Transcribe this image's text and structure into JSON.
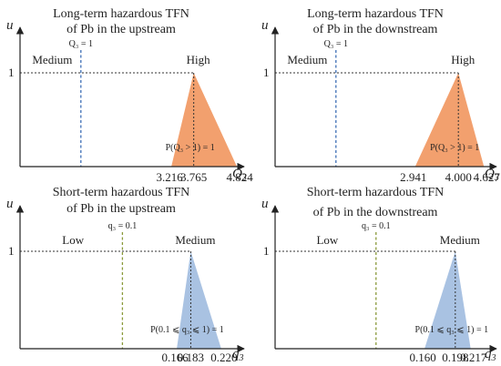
{
  "chart_data": [
    {
      "type": "area",
      "title_lines": [
        "Long-term hazardous TFN",
        "of Pb in the upstream"
      ],
      "y_axis_label": "u",
      "x_axis_label": "Q",
      "x_axis_subscript": "3",
      "y_tick_label": "1",
      "threshold_label": "Q₃ = 1",
      "threshold_value": 1,
      "left_region_label": "Medium",
      "right_region_label": "High",
      "probability_label": "P(Q₃ > 1) = 1",
      "tfn": [
        3.216,
        3.765,
        4.824
      ],
      "tfn_labels": [
        "3.216",
        "3.765",
        "4.824"
      ],
      "x_range": [
        0,
        5
      ],
      "y_range": [
        0,
        1
      ],
      "fill_color": "#f2a06e",
      "threshold_color": "#3d6fb6"
    },
    {
      "type": "area",
      "title_lines": [
        "Long-term hazardous TFN",
        "of Pb in the downstream"
      ],
      "y_axis_label": "u",
      "x_axis_label": "Q",
      "x_axis_subscript": "3",
      "y_tick_label": "1",
      "threshold_label": "Q₃ = 1",
      "threshold_value": 1,
      "left_region_label": "Medium",
      "right_region_label": "High",
      "probability_label": "P(Q₃ > 1) = 1",
      "tfn": [
        2.941,
        4.0,
        4.627
      ],
      "tfn_labels": [
        "2.941",
        "4.000",
        "4.627"
      ],
      "x_range": [
        0,
        5
      ],
      "y_range": [
        0,
        1
      ],
      "fill_color": "#f2a06e",
      "threshold_color": "#3d6fb6"
    },
    {
      "type": "area",
      "title_lines": [
        "Short-term hazardous TFN",
        "of Pb in the upstream"
      ],
      "y_axis_label": "u",
      "x_axis_label": "q",
      "x_axis_subscript": "3",
      "y_tick_label": "1",
      "threshold_label": "q₃ = 0.1",
      "threshold_value": 0.1,
      "left_region_label": "Low",
      "right_region_label": "Medium",
      "probability_label": "P(0.1 ⩽ q₃ ⩽ 1) = 1",
      "tfn": [
        0.166,
        0.183,
        0.22
      ],
      "tfn_labels": [
        "0.166",
        "0.183",
        "0.220"
      ],
      "x_range": [
        0,
        0.25
      ],
      "y_range": [
        0,
        1
      ],
      "fill_color": "#a9c2e2",
      "threshold_color": "#8a9a3a"
    },
    {
      "type": "area",
      "title_lines": [
        "Short-term hazardous TFN",
        "of Pb in the downstream"
      ],
      "y_axis_label": "u",
      "x_axis_label": "q",
      "x_axis_subscript": "3",
      "y_tick_label": "1",
      "threshold_label": "q₃ = 0.1",
      "threshold_value": 0.1,
      "left_region_label": "Low",
      "right_region_label": "Medium",
      "probability_label": "P(0.1 ⩽ q₃ ⩽ 1) = 1",
      "tfn": [
        0.16,
        0.198,
        0.217
      ],
      "tfn_labels": [
        "0.160",
        "0.198",
        "0.217"
      ],
      "x_range": [
        0,
        0.25
      ],
      "y_range": [
        0,
        1
      ],
      "fill_color": "#a9c2e2",
      "threshold_color": "#8a9a3a"
    }
  ]
}
